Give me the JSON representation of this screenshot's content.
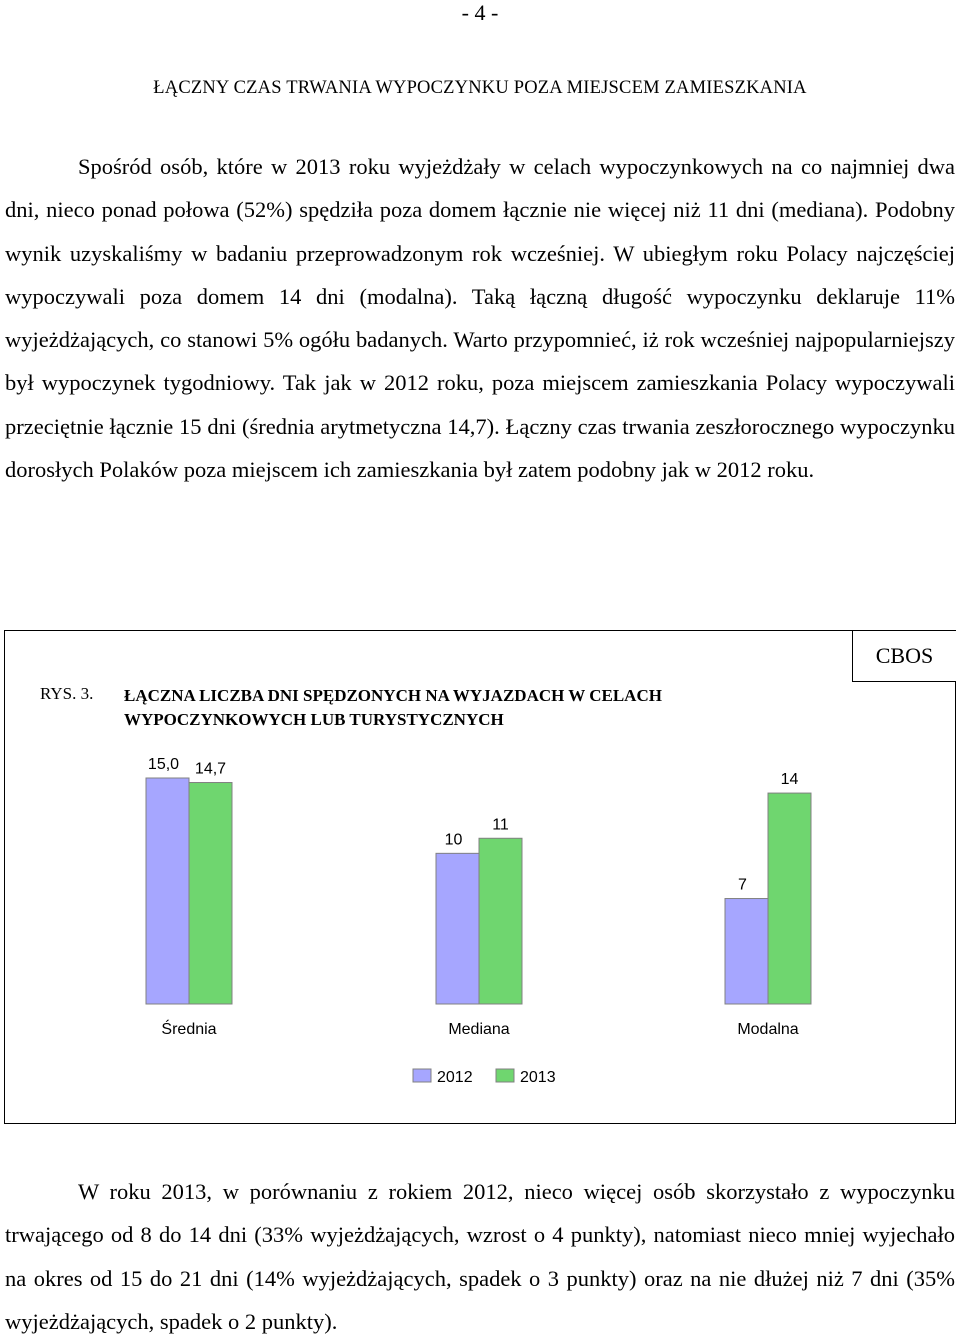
{
  "page_number": "- 4 -",
  "section_title": "ŁĄCZNY CZAS TRWANIA WYPOCZYNKU POZA MIEJSCEM ZAMIESZKANIA",
  "paragraph1": "Spośród osób, które w 2013 roku wyjeżdżały w celach wypoczynkowych na co najmniej dwa dni, nieco ponad połowa (52%) spędziła poza domem łącznie nie więcej niż 11 dni (mediana). Podobny wynik uzyskaliśmy w badaniu przeprowadzonym rok wcześniej. W ubiegłym roku Polacy najczęściej wypoczywali poza domem 14 dni (modalna). Taką łączną długość wypoczynku deklaruje 11% wyjeżdżających, co stanowi 5% ogółu badanych. Warto przypomnieć, iż rok wcześniej najpopularniejszy był wypoczynek tygodniowy. Tak jak w 2012 roku, poza miejscem zamieszkania Polacy wypoczywali przeciętnie łącznie 15 dni (średnia arytmetyczna 14,7). Łączny czas trwania zeszłorocznego wypoczynku dorosłych Polaków poza miejscem ich zamieszkania był zatem podobny jak w 2012 roku.",
  "paragraph2": "W roku 2013, w porównaniu z rokiem 2012, nieco więcej osób skorzystało z wypoczynku trwającego od 8 do 14 dni (33% wyjeżdżających, wzrost o 4 punkty), natomiast nieco mniej wyjechało na okres od 15 do 21 dni (14% wyjeżdżających, spadek o 3 punkty) oraz na nie dłużej niż 7 dni (35% wyjeżdżających, spadek o 2 punkty).",
  "figure": {
    "source_label": "CBOS",
    "number": "RYS. 3.",
    "title": "ŁĄCZNA LICZBA DNI SPĘDZONYCH NA WYJAZDACH W CELACH WYPOCZYNKOWYCH LUB TURYSTYCZNYCH"
  },
  "chart_data": {
    "type": "bar",
    "categories": [
      "Średnia",
      "Mediana",
      "Modalna"
    ],
    "series": [
      {
        "name": "2012",
        "values": [
          15.0,
          10,
          7
        ],
        "labels": [
          "15,0",
          "10",
          "7"
        ],
        "color": "#a6a6ff"
      },
      {
        "name": "2013",
        "values": [
          14.7,
          11,
          14
        ],
        "labels": [
          "14,7",
          "11",
          "14"
        ],
        "color": "#6fd66f"
      }
    ],
    "ylim": [
      0,
      15
    ],
    "grid": false,
    "legend_position": "bottom"
  }
}
